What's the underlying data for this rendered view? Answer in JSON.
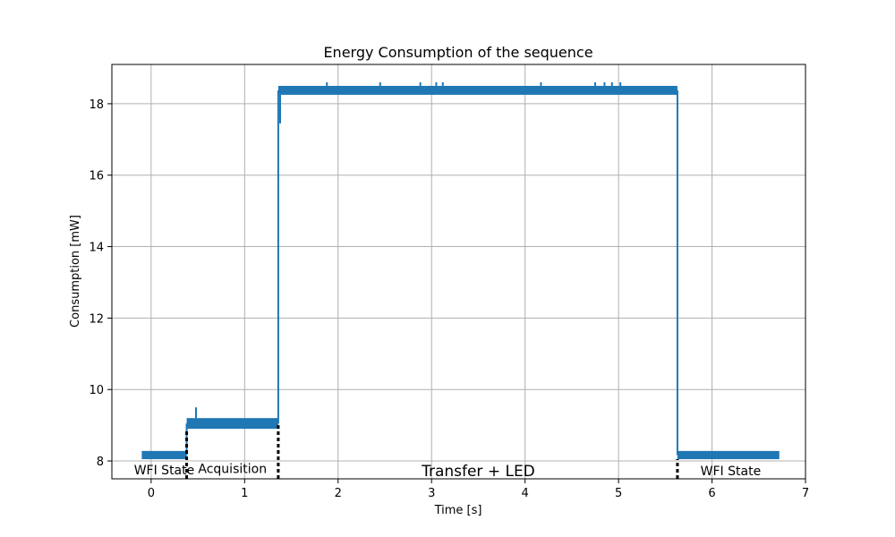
{
  "chart_data": {
    "type": "line",
    "title": "Energy Consumption of the sequence",
    "xlabel": "Time [s]",
    "ylabel": "Consumption [mW]",
    "xlim": [
      -0.42,
      7.0
    ],
    "ylim": [
      7.5,
      19.1
    ],
    "xticks": [
      0,
      1,
      2,
      3,
      4,
      5,
      6,
      7
    ],
    "yticks": [
      8,
      10,
      12,
      14,
      16,
      18
    ],
    "grid": true,
    "series_color": "#1f77b4",
    "segments": [
      {
        "x_start": -0.1,
        "x_end": 0.38,
        "low": 8.05,
        "high": 8.28
      },
      {
        "x_start": 0.38,
        "x_end": 1.36,
        "low": 8.9,
        "high": 9.2
      },
      {
        "x_start": 1.36,
        "x_end": 5.63,
        "low": 18.25,
        "high": 18.5
      },
      {
        "x_start": 5.63,
        "x_end": 6.72,
        "low": 8.05,
        "high": 8.28
      }
    ],
    "spikes": [
      {
        "x": 0.48,
        "y": 9.5
      },
      {
        "x": 1.38,
        "y": 17.45
      },
      {
        "x": 1.88,
        "y": 18.6
      },
      {
        "x": 2.45,
        "y": 18.6
      },
      {
        "x": 2.88,
        "y": 18.6
      },
      {
        "x": 3.05,
        "y": 18.6
      },
      {
        "x": 3.12,
        "y": 18.6
      },
      {
        "x": 4.17,
        "y": 18.6
      },
      {
        "x": 4.75,
        "y": 18.6
      },
      {
        "x": 4.85,
        "y": 18.6
      },
      {
        "x": 4.93,
        "y": 18.6
      },
      {
        "x": 5.02,
        "y": 18.6
      }
    ],
    "phase_boundaries": [
      0.38,
      1.36,
      5.63
    ],
    "phase_labels": [
      {
        "text": "WFI State",
        "x": 0.14,
        "y": 7.75
      },
      {
        "text": "Acquisition",
        "x": 0.87,
        "y": 7.78
      },
      {
        "text": "Transfer + LED",
        "x": 3.5,
        "y": 7.73
      },
      {
        "text": "WFI State",
        "x": 6.2,
        "y": 7.72
      }
    ]
  }
}
